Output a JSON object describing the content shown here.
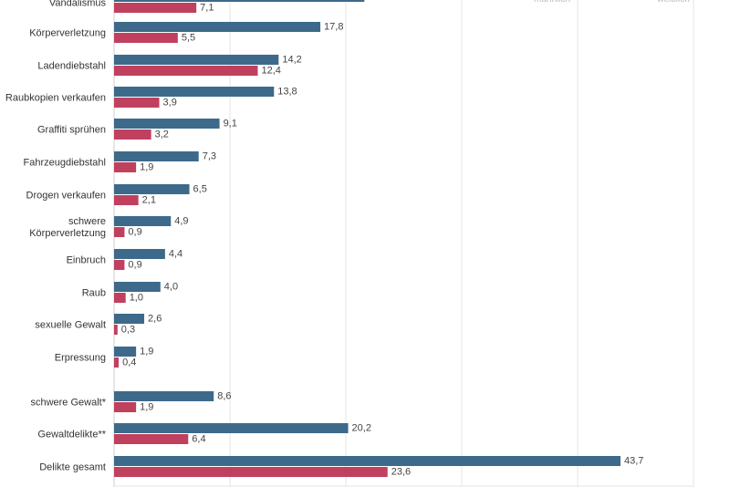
{
  "chart_data": {
    "type": "bar",
    "orientation": "horizontal",
    "xlim": [
      0,
      50
    ],
    "gridlines": [
      0,
      10,
      20,
      30,
      40,
      50
    ],
    "grid": true,
    "legend": [
      "männlich",
      "weiblich"
    ],
    "colors": {
      "male": "#3d6a8a",
      "female": "#c0405f",
      "grid": "#e6e6e6",
      "axis": "#cccccc"
    },
    "categories": [
      [
        "Vandalismus"
      ],
      [
        "Körperverletzung"
      ],
      [
        "Ladendiebstahl"
      ],
      [
        "Raubkopien verkaufen"
      ],
      [
        "Graffiti sprühen"
      ],
      [
        "Fahrzeugdiebstahl"
      ],
      [
        "Drogen verkaufen"
      ],
      [
        "schwere",
        "Körperverletzung"
      ],
      [
        "Einbruch"
      ],
      [
        "Raub"
      ],
      [
        "sexuelle Gewalt"
      ],
      [
        "Erpressung"
      ],
      [
        "schwere Gewalt*"
      ],
      [
        "Gewaltdelikte**"
      ],
      [
        "Delikte gesamt"
      ]
    ],
    "series": [
      {
        "name": "male",
        "values": [
          21.6,
          17.8,
          14.2,
          13.8,
          9.1,
          7.3,
          6.5,
          4.9,
          4.4,
          4.0,
          2.6,
          1.9,
          8.6,
          20.2,
          43.7
        ]
      },
      {
        "name": "female",
        "values": [
          7.1,
          5.5,
          12.4,
          3.9,
          3.2,
          1.9,
          2.1,
          0.9,
          0.9,
          1.0,
          0.3,
          0.4,
          1.9,
          6.4,
          23.6
        ]
      }
    ],
    "value_labels": {
      "male": [
        "",
        "17,8",
        "14,2",
        "13,8",
        "9,1",
        "7,3",
        "6,5",
        "4,9",
        "4,4",
        "4,0",
        "2,6",
        "1,9",
        "8,6",
        "20,2",
        "43,7"
      ],
      "female": [
        "7,1",
        "5,5",
        "12,4",
        "3,9",
        "3,2",
        "1,9",
        "2,1",
        "0,9",
        "0,9",
        "1,0",
        "0,3",
        "0,4",
        "1,9",
        "6,4",
        "23,6"
      ]
    }
  }
}
